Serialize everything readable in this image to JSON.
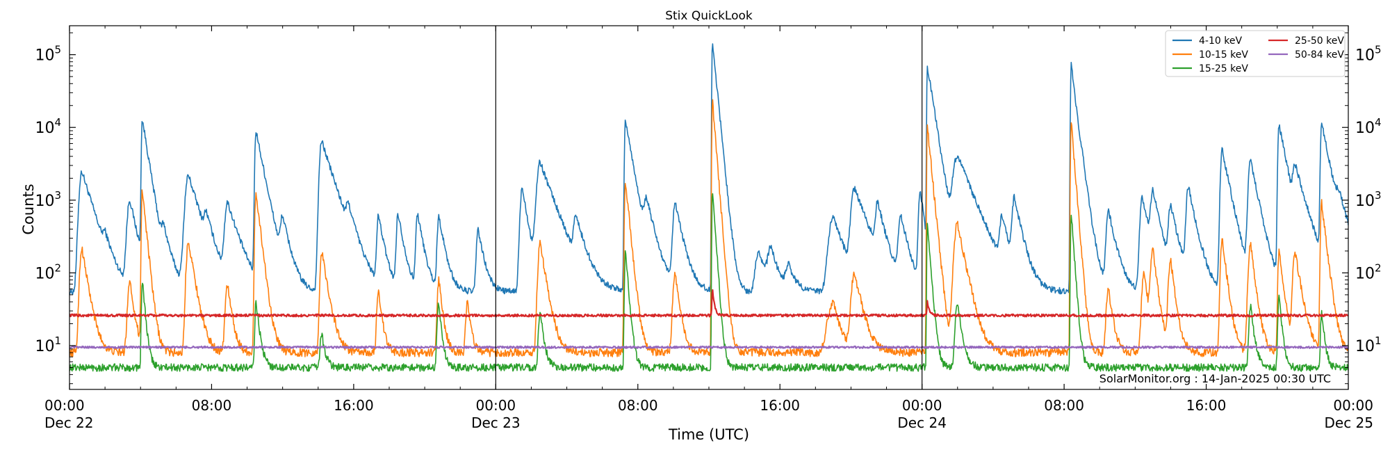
{
  "chart_data": {
    "type": "line",
    "title": "Stix QuickLook",
    "xlabel": "Time (UTC)",
    "ylabel": "Counts",
    "yscale": "log",
    "ylim": [
      2.5,
      250000
    ],
    "xlim_hours": [
      0,
      72
    ],
    "x_ticks": [
      {
        "hour": 0,
        "time": "00:00",
        "date": "Dec 22"
      },
      {
        "hour": 8,
        "time": "08:00",
        "date": ""
      },
      {
        "hour": 16,
        "time": "16:00",
        "date": ""
      },
      {
        "hour": 24,
        "time": "00:00",
        "date": "Dec 23"
      },
      {
        "hour": 32,
        "time": "08:00",
        "date": ""
      },
      {
        "hour": 40,
        "time": "16:00",
        "date": ""
      },
      {
        "hour": 48,
        "time": "00:00",
        "date": "Dec 24"
      },
      {
        "hour": 56,
        "time": "08:00",
        "date": ""
      },
      {
        "hour": 64,
        "time": "16:00",
        "date": ""
      },
      {
        "hour": 72,
        "time": "00:00",
        "date": "Dec 25"
      }
    ],
    "y_ticks": [
      {
        "value": 10,
        "base": "10",
        "exp": "1"
      },
      {
        "value": 100,
        "base": "10",
        "exp": "2"
      },
      {
        "value": 1000,
        "base": "10",
        "exp": "3"
      },
      {
        "value": 10000,
        "base": "10",
        "exp": "4"
      },
      {
        "value": 100000,
        "base": "10",
        "exp": "5"
      }
    ],
    "day_dividers_hours": [
      24,
      48
    ],
    "annotation": "SolarMonitor.org : 14-Jan-2025 00:30 UTC",
    "legend_position": "top-right",
    "series": [
      {
        "name": "4-10 keV",
        "color": "#1f77b4",
        "baseline": 55,
        "noise": 0.1,
        "events": [
          [
            0.7,
            2500,
            0.25,
            1.5
          ],
          [
            2.0,
            180,
            0.2,
            1.0
          ],
          [
            3.4,
            1000,
            0.25,
            1.0
          ],
          [
            4.1,
            13000,
            0.08,
            0.8
          ],
          [
            5.3,
            300,
            0.2,
            1.2
          ],
          [
            6.7,
            2200,
            0.3,
            1.5
          ],
          [
            7.7,
            400,
            0.2,
            1.0
          ],
          [
            8.9,
            900,
            0.25,
            1.5
          ],
          [
            10.5,
            9000,
            0.1,
            1.0
          ],
          [
            12.0,
            500,
            0.2,
            1.0
          ],
          [
            14.2,
            6500,
            0.2,
            1.6
          ],
          [
            15.7,
            500,
            0.2,
            1.0
          ],
          [
            17.4,
            600,
            0.15,
            0.8
          ],
          [
            18.5,
            650,
            0.15,
            0.8
          ],
          [
            19.6,
            650,
            0.15,
            0.8
          ],
          [
            20.8,
            600,
            0.15,
            0.8
          ],
          [
            23.0,
            400,
            0.15,
            0.8
          ],
          [
            25.5,
            1500,
            0.2,
            0.8
          ],
          [
            26.5,
            3300,
            0.3,
            1.8
          ],
          [
            28.5,
            500,
            0.2,
            1.2
          ],
          [
            31.3,
            12500,
            0.08,
            0.9
          ],
          [
            32.5,
            800,
            0.25,
            1.2
          ],
          [
            34.1,
            900,
            0.2,
            1.0
          ],
          [
            36.2,
            155000,
            0.05,
            0.5
          ],
          [
            38.8,
            200,
            0.3,
            1.2
          ],
          [
            39.5,
            200,
            0.3,
            1.0
          ],
          [
            40.5,
            120,
            0.3,
            1.0
          ],
          [
            43.0,
            600,
            0.4,
            1.5
          ],
          [
            44.2,
            1400,
            0.3,
            1.8
          ],
          [
            45.5,
            800,
            0.2,
            1.0
          ],
          [
            46.8,
            600,
            0.2,
            1.0
          ],
          [
            47.9,
            1400,
            0.15,
            0.6
          ],
          [
            48.3,
            70000,
            0.05,
            0.8
          ],
          [
            50.0,
            4000,
            0.4,
            2.0
          ],
          [
            52.5,
            500,
            0.2,
            1.0
          ],
          [
            53.2,
            1000,
            0.2,
            1.0
          ],
          [
            56.4,
            75000,
            0.06,
            0.6
          ],
          [
            57.0,
            900,
            0.2,
            1.0
          ],
          [
            58.5,
            700,
            0.2,
            1.0
          ],
          [
            60.4,
            1100,
            0.2,
            1.0
          ],
          [
            61.0,
            1200,
            0.2,
            1.0
          ],
          [
            62.0,
            800,
            0.2,
            1.0
          ],
          [
            63.0,
            1500,
            0.2,
            1.0
          ],
          [
            64.9,
            5000,
            0.15,
            1.0
          ],
          [
            66.5,
            3500,
            0.2,
            1.0
          ],
          [
            68.1,
            11000,
            0.1,
            1.0
          ],
          [
            69.0,
            2400,
            0.2,
            1.5
          ],
          [
            70.5,
            11500,
            0.1,
            1.0
          ],
          [
            71.5,
            700,
            0.3,
            1.5
          ]
        ]
      },
      {
        "name": "10-15 keV",
        "color": "#ff7f0e",
        "baseline": 8,
        "noise": 0.13,
        "events": [
          [
            0.7,
            220,
            0.2,
            0.8
          ],
          [
            3.4,
            80,
            0.2,
            0.6
          ],
          [
            4.1,
            1400,
            0.08,
            0.5
          ],
          [
            6.7,
            280,
            0.2,
            0.8
          ],
          [
            8.9,
            70,
            0.2,
            0.6
          ],
          [
            10.5,
            1300,
            0.1,
            0.6
          ],
          [
            14.2,
            200,
            0.15,
            0.8
          ],
          [
            17.4,
            60,
            0.15,
            0.5
          ],
          [
            20.8,
            80,
            0.15,
            0.5
          ],
          [
            22.4,
            40,
            0.15,
            0.5
          ],
          [
            26.5,
            250,
            0.2,
            0.8
          ],
          [
            31.3,
            1900,
            0.08,
            0.5
          ],
          [
            34.1,
            100,
            0.2,
            0.6
          ],
          [
            36.2,
            24000,
            0.05,
            0.4
          ],
          [
            43.0,
            40,
            0.5,
            1.0
          ],
          [
            44.2,
            100,
            0.3,
            1.0
          ],
          [
            48.3,
            10500,
            0.05,
            0.5
          ],
          [
            50.0,
            480,
            0.3,
            1.0
          ],
          [
            56.4,
            12000,
            0.06,
            0.4
          ],
          [
            58.5,
            60,
            0.2,
            0.6
          ],
          [
            60.5,
            100,
            0.2,
            0.6
          ],
          [
            61.0,
            200,
            0.2,
            0.6
          ],
          [
            62.0,
            150,
            0.2,
            0.6
          ],
          [
            64.9,
            300,
            0.15,
            0.6
          ],
          [
            66.5,
            250,
            0.2,
            0.6
          ],
          [
            68.1,
            200,
            0.1,
            0.6
          ],
          [
            69.0,
            200,
            0.2,
            0.8
          ],
          [
            70.5,
            900,
            0.1,
            0.6
          ]
        ]
      },
      {
        "name": "15-25 keV",
        "color": "#2ca02c",
        "baseline": 5,
        "noise": 0.12,
        "events": [
          [
            4.1,
            80,
            0.08,
            0.4
          ],
          [
            10.5,
            40,
            0.1,
            0.5
          ],
          [
            14.2,
            15,
            0.15,
            0.5
          ],
          [
            20.8,
            40,
            0.15,
            0.4
          ],
          [
            26.5,
            30,
            0.15,
            0.5
          ],
          [
            31.3,
            200,
            0.08,
            0.4
          ],
          [
            36.2,
            1400,
            0.05,
            0.35
          ],
          [
            48.3,
            450,
            0.05,
            0.4
          ],
          [
            50.0,
            40,
            0.2,
            0.6
          ],
          [
            56.4,
            700,
            0.06,
            0.35
          ],
          [
            66.5,
            35,
            0.15,
            0.5
          ],
          [
            68.1,
            50,
            0.1,
            0.4
          ],
          [
            70.5,
            30,
            0.1,
            0.4
          ]
        ]
      },
      {
        "name": "25-50 keV",
        "color": "#d62728",
        "baseline": 26,
        "noise": 0.04,
        "events": [
          [
            36.2,
            60,
            0.05,
            0.3
          ],
          [
            48.3,
            40,
            0.05,
            0.3
          ]
        ]
      },
      {
        "name": "50-84 keV",
        "color": "#9467bd",
        "baseline": 9.5,
        "noise": 0.03,
        "events": []
      }
    ]
  }
}
